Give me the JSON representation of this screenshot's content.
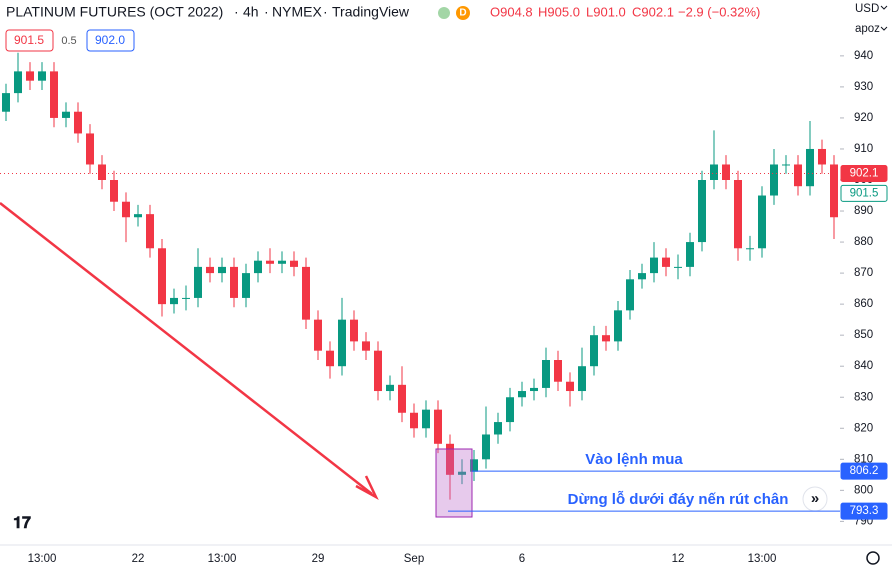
{
  "header": {
    "symbol": "PLATINUM FUTURES (OCT 2022)",
    "interval": "4h",
    "exchange": "NYMEX",
    "source": "TradingView",
    "flag": "D",
    "ohlc": [
      "O904.8",
      "H905.0",
      "L901.0",
      "C902.1",
      "−2.9 (−0.32%)"
    ],
    "quote": {
      "sell": "901.5",
      "spread": "0.5",
      "buy": "902.0"
    }
  },
  "axis_header": {
    "currency": "USD",
    "scale": "apoz"
  },
  "chart_data": {
    "type": "candlestick",
    "categories": [
      null,
      null,
      null,
      "13:00",
      null,
      null,
      null,
      null,
      null,
      null,
      null,
      "22",
      null,
      null,
      null,
      null,
      null,
      null,
      "13:00",
      null,
      null,
      null,
      null,
      null,
      null,
      null,
      "29",
      null,
      null,
      null,
      null,
      null,
      null,
      null,
      "Sep",
      null,
      null,
      null,
      null,
      null,
      null,
      null,
      null,
      "6",
      null,
      null,
      null,
      null,
      null,
      null,
      null,
      null,
      null,
      null,
      null,
      null,
      "12",
      null,
      null,
      null,
      null,
      null,
      null,
      "13:00",
      null,
      null,
      null,
      null,
      null,
      null
    ],
    "open": [
      922,
      928,
      935,
      932,
      935,
      920,
      922,
      915,
      905,
      900,
      893,
      888,
      889,
      878,
      860,
      862,
      862,
      872,
      870,
      872,
      862,
      870,
      874,
      873,
      874,
      872,
      855,
      845,
      840,
      855,
      848,
      845,
      832,
      834,
      825,
      820,
      826,
      815,
      805,
      806,
      810,
      818,
      822,
      830,
      832,
      833,
      842,
      835,
      832,
      840,
      850,
      848,
      858,
      868,
      870,
      875,
      872,
      872,
      880,
      900,
      905,
      900,
      878,
      878,
      895,
      905,
      905,
      898,
      910,
      905
    ],
    "high": [
      931,
      941,
      938,
      938,
      938,
      925,
      925,
      918,
      908,
      903,
      896,
      892,
      892,
      881,
      865,
      866,
      878,
      875,
      875,
      875,
      873,
      877,
      878,
      877,
      877,
      875,
      858,
      848,
      862,
      858,
      851,
      848,
      837,
      840,
      828,
      829,
      829,
      818,
      810,
      813,
      827,
      825,
      833,
      835,
      836,
      846,
      845,
      838,
      846,
      853,
      853,
      861,
      871,
      873,
      880,
      878,
      876,
      883,
      903,
      916,
      908,
      903,
      882,
      898,
      910,
      908,
      908,
      919,
      913,
      908
    ],
    "low": [
      919,
      925,
      929,
      929,
      917,
      917,
      912,
      902,
      897,
      890,
      880,
      885,
      875,
      856,
      857,
      858,
      859,
      867,
      867,
      859,
      859,
      867,
      870,
      870,
      869,
      852,
      842,
      836,
      837,
      845,
      842,
      829,
      829,
      822,
      817,
      817,
      812,
      797,
      802,
      803,
      807,
      815,
      819,
      827,
      829,
      830,
      832,
      827,
      829,
      837,
      845,
      845,
      855,
      865,
      867,
      869,
      868,
      869,
      877,
      897,
      897,
      874,
      874,
      875,
      892,
      902,
      895,
      895,
      902,
      881
    ],
    "close": [
      928,
      935,
      932,
      935,
      920,
      922,
      915,
      905,
      900,
      893,
      888,
      889,
      878,
      860,
      862,
      862,
      872,
      870,
      872,
      862,
      870,
      874,
      873,
      874,
      872,
      855,
      845,
      840,
      855,
      848,
      845,
      832,
      834,
      825,
      820,
      826,
      815,
      805,
      806,
      810,
      818,
      822,
      830,
      832,
      833,
      842,
      835,
      832,
      840,
      850,
      848,
      858,
      868,
      870,
      875,
      872,
      872,
      880,
      900,
      905,
      900,
      878,
      878,
      895,
      905,
      905,
      898,
      910,
      905,
      888
    ],
    "up_color": "#089981",
    "down_color": "#f23645",
    "ylim": [
      784,
      958
    ],
    "yticks": [
      790,
      800,
      810,
      820,
      830,
      840,
      850,
      860,
      870,
      880,
      890,
      900,
      910,
      920,
      930,
      940
    ],
    "price_labels": [
      {
        "value": 902.1,
        "color": "#f23645",
        "style": "fill",
        "line": "dotted"
      },
      {
        "value": 901.5,
        "color": "#089981",
        "style": "outline"
      },
      {
        "value": 806.2,
        "color": "#2962ff",
        "style": "fill",
        "line": "solid"
      },
      {
        "value": 793.3,
        "color": "#2962ff",
        "style": "fill",
        "line": "solid"
      }
    ],
    "annotations": [
      "Vào lệnh mua",
      "Dừng lỗ dưới đáy nến rút chân"
    ]
  }
}
